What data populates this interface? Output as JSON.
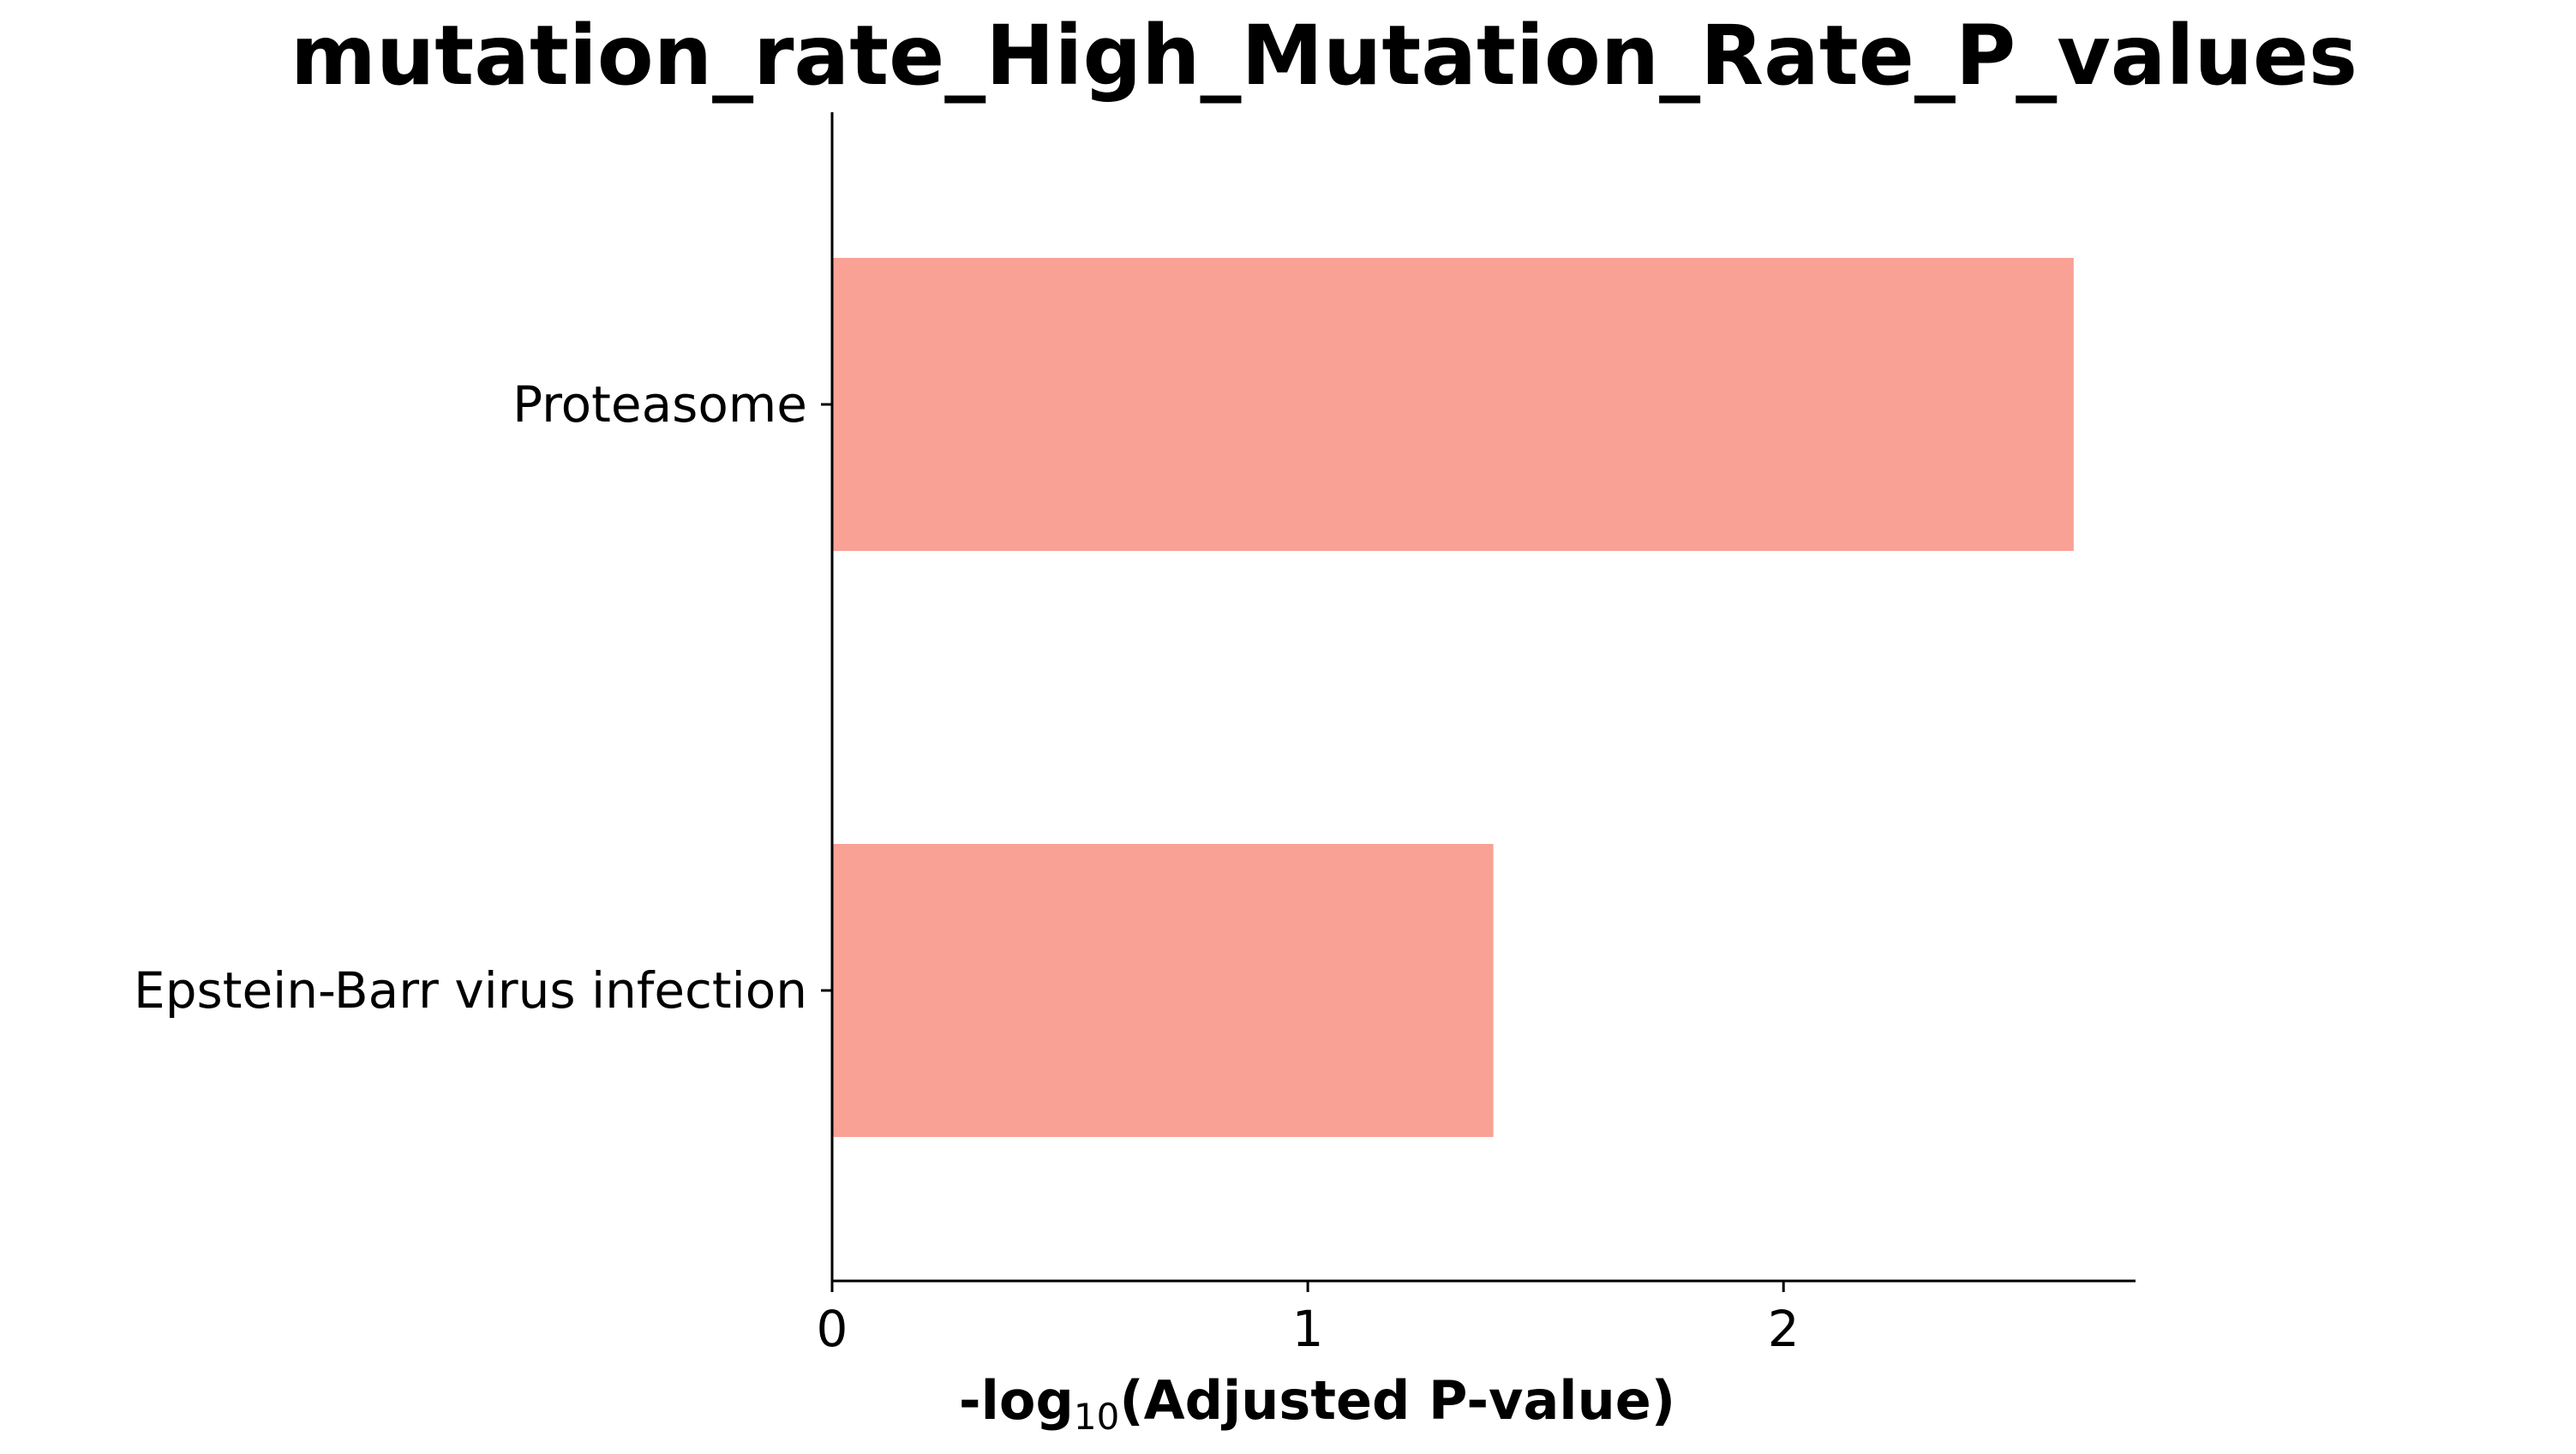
{
  "chart_data": {
    "type": "bar",
    "orientation": "horizontal",
    "title": "mutation_rate_High_Mutation_Rate_P_values",
    "xlabel": {
      "prefix": "-log",
      "subscript": "10",
      "suffix": "(Adjusted P-value)"
    },
    "ylabel": "",
    "categories": [
      "Proteasome",
      "Epstein-Barr virus infection"
    ],
    "values": [
      2.61,
      1.39
    ],
    "xlim": [
      0,
      2.74
    ],
    "xticks": [
      0,
      1,
      2
    ],
    "xtick_labels": [
      "0",
      "1",
      "2"
    ],
    "grid": false,
    "legend": "none",
    "bar_color": "#f9a195"
  }
}
